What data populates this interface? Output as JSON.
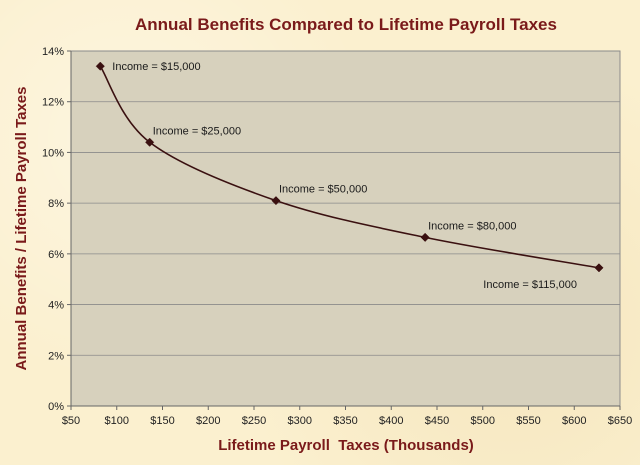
{
  "chart_data": {
    "type": "line",
    "title": "Annual Benefits Compared to Lifetime Payroll Taxes",
    "xlabel": "Lifetime Payroll  Taxes (Thousands)",
    "ylabel": "Annual Benefits / Lifetime Payroll Taxes",
    "xlim": [
      50,
      650
    ],
    "ylim": [
      0,
      14
    ],
    "x_ticks": [
      50,
      100,
      150,
      200,
      250,
      300,
      350,
      400,
      450,
      500,
      550,
      600,
      650
    ],
    "x_tick_labels": [
      "$50",
      "$100",
      "$150",
      "$200",
      "$250",
      "$300",
      "$350",
      "$400",
      "$450",
      "$500",
      "$550",
      "$600",
      "$650"
    ],
    "y_ticks": [
      0,
      2,
      4,
      6,
      8,
      10,
      12,
      14
    ],
    "y_tick_labels": [
      "0%",
      "2%",
      "4%",
      "6%",
      "8%",
      "10%",
      "12%",
      "14%"
    ],
    "grid": "horizontal",
    "smooth": true,
    "series": [
      {
        "points": [
          {
            "x": 82,
            "y": 13.4,
            "label": "Income = $15,000",
            "label_position": "right"
          },
          {
            "x": 136,
            "y": 10.4,
            "label": "Income = $25,000",
            "label_position": "above-right"
          },
          {
            "x": 274,
            "y": 8.1,
            "label": "Income = $50,000",
            "label_position": "above-right"
          },
          {
            "x": 437,
            "y": 6.65,
            "label": "Income = $80,000",
            "label_position": "above-right"
          },
          {
            "x": 627,
            "y": 5.45,
            "label": "Income = $115,000",
            "label_position": "below-left"
          }
        ]
      }
    ],
    "colors": {
      "plot_background": "#d7d1bd",
      "line": "#3a1010",
      "marker": "#3a1010",
      "title": "#7a1a1a",
      "axis_label": "#7a1a1a",
      "grid": "#8a8a8a"
    }
  }
}
